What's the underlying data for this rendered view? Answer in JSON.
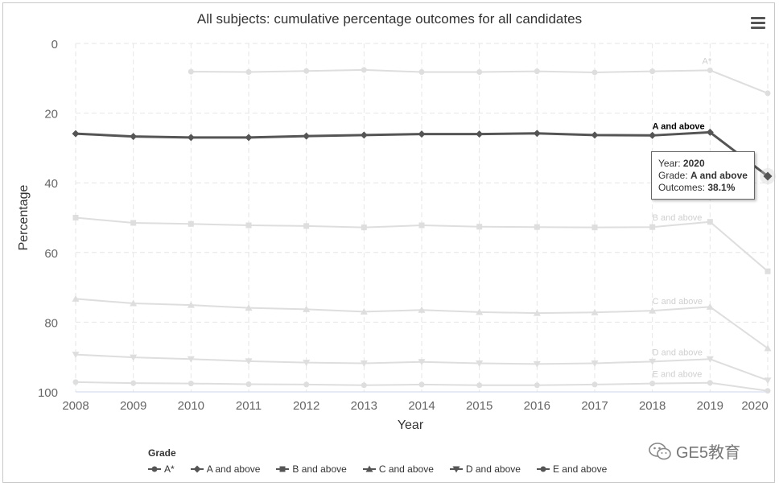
{
  "chart_data": {
    "type": "line",
    "title": "All subjects: cumulative percentage outcomes for all candidates",
    "xlabel": "Year",
    "ylabel": "Percentage",
    "ylim": [
      0,
      100
    ],
    "y_reversed": true,
    "yticks": [
      0,
      20,
      40,
      60,
      80,
      100
    ],
    "x": [
      2008,
      2009,
      2010,
      2011,
      2012,
      2013,
      2014,
      2015,
      2016,
      2017,
      2018,
      2019,
      2020
    ],
    "grid": true,
    "legend_title": "Grade",
    "legend_position": "bottom",
    "series": [
      {
        "name": "A*",
        "marker": "circle",
        "highlighted": false,
        "values": [
          null,
          null,
          8.1,
          8.2,
          7.9,
          7.6,
          8.2,
          8.2,
          8.0,
          8.3,
          8.0,
          7.7,
          14.3
        ]
      },
      {
        "name": "A and above",
        "marker": "diamond",
        "highlighted": true,
        "values": [
          25.9,
          26.7,
          27.0,
          27.0,
          26.6,
          26.3,
          26.0,
          26.0,
          25.8,
          26.3,
          26.4,
          25.5,
          38.1
        ]
      },
      {
        "name": "B and above",
        "marker": "square",
        "highlighted": false,
        "values": [
          50.0,
          51.5,
          51.8,
          52.2,
          52.4,
          52.8,
          52.2,
          52.6,
          52.7,
          52.8,
          52.7,
          51.2,
          65.4
        ]
      },
      {
        "name": "C and above",
        "marker": "triangle",
        "highlighted": false,
        "values": [
          73.3,
          74.6,
          75.1,
          75.9,
          76.3,
          77.0,
          76.5,
          77.1,
          77.4,
          77.2,
          76.7,
          75.6,
          87.5
        ]
      },
      {
        "name": "D and above",
        "marker": "triangle-down",
        "highlighted": false,
        "values": [
          89.3,
          90.1,
          90.6,
          91.2,
          91.6,
          91.8,
          91.4,
          91.8,
          92.0,
          91.8,
          91.3,
          90.6,
          96.7
        ]
      },
      {
        "name": "E and above",
        "marker": "circle",
        "highlighted": false,
        "values": [
          97.2,
          97.5,
          97.6,
          97.8,
          97.9,
          98.1,
          97.9,
          98.1,
          98.1,
          97.9,
          97.6,
          97.4,
          99.7
        ]
      }
    ],
    "annotations": [
      {
        "label": "A*",
        "year": 2019,
        "series": 0
      },
      {
        "label": "A and above",
        "year": 2018,
        "series": 1
      },
      {
        "label": "B and above",
        "year": 2018,
        "series": 2
      },
      {
        "label": "C and above",
        "year": 2018,
        "series": 3
      },
      {
        "label": "D and above",
        "year": 2018,
        "series": 4
      },
      {
        "label": "E and above",
        "year": 2018,
        "series": 5
      }
    ],
    "tooltip": {
      "year_label": "Year: ",
      "year_value": "2020",
      "grade_label": "Grade: ",
      "grade_value": "A and above",
      "outcome_label": "Outcomes: ",
      "outcome_value": "38.1%"
    }
  },
  "watermark": "GE5教育",
  "colors": {
    "highlight": "#555555",
    "faded": "#dedede",
    "grid": "#e6e6e6",
    "axis_text": "#666666"
  }
}
